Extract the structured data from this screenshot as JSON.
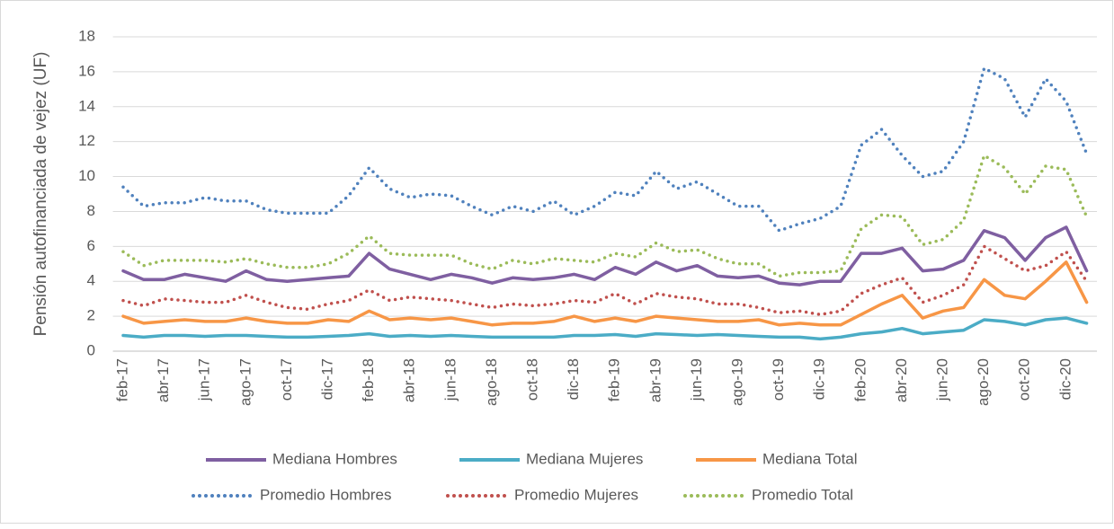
{
  "chart_data": {
    "type": "line",
    "y_label": "Pensión autofinanciada de vejez (UF)",
    "categories": [
      "feb-17",
      null,
      "abr-17",
      null,
      "jun-17",
      null,
      "ago-17",
      null,
      "oct-17",
      null,
      "dic-17",
      null,
      "feb-18",
      null,
      "abr-18",
      null,
      "jun-18",
      null,
      "ago-18",
      null,
      "oct-18",
      null,
      "dic-18",
      null,
      "feb-19",
      null,
      "abr-19",
      null,
      "jun-19",
      null,
      "ago-19",
      null,
      "oct-19",
      null,
      "dic-19",
      null,
      "feb-20",
      null,
      "abr-20",
      null,
      "jun-20",
      null,
      "ago-20",
      null,
      "oct-20",
      null,
      "dic-20",
      null
    ],
    "ylim": [
      0,
      18
    ],
    "yticks": [
      0,
      2,
      4,
      6,
      8,
      10,
      12,
      14,
      16,
      18
    ],
    "grid": true,
    "series": [
      {
        "name": "Mediana Hombres",
        "color": "#7f5fa1",
        "style": "solid",
        "values": [
          4.6,
          4.1,
          4.1,
          4.4,
          4.2,
          4.0,
          4.6,
          4.1,
          4.0,
          4.1,
          4.2,
          4.3,
          5.6,
          4.7,
          4.4,
          4.1,
          4.4,
          4.2,
          3.9,
          4.2,
          4.1,
          4.2,
          4.4,
          4.1,
          4.8,
          4.4,
          5.1,
          4.6,
          4.9,
          4.3,
          4.2,
          4.3,
          3.9,
          3.8,
          4.0,
          4.0,
          5.6,
          5.6,
          5.9,
          4.6,
          4.7,
          5.2,
          6.9,
          6.5,
          5.2,
          6.5,
          7.1,
          4.6
        ]
      },
      {
        "name": "Mediana Mujeres",
        "color": "#4bacc6",
        "style": "solid",
        "values": [
          0.9,
          0.8,
          0.9,
          0.9,
          0.85,
          0.9,
          0.9,
          0.85,
          0.8,
          0.8,
          0.85,
          0.9,
          1.0,
          0.85,
          0.9,
          0.85,
          0.9,
          0.85,
          0.8,
          0.8,
          0.8,
          0.8,
          0.9,
          0.9,
          0.95,
          0.85,
          1.0,
          0.95,
          0.9,
          0.95,
          0.9,
          0.85,
          0.8,
          0.8,
          0.7,
          0.8,
          1.0,
          1.1,
          1.3,
          1.0,
          1.1,
          1.2,
          1.8,
          1.7,
          1.5,
          1.8,
          1.9,
          1.6
        ]
      },
      {
        "name": "Mediana Total",
        "color": "#f79646",
        "style": "solid",
        "values": [
          2.0,
          1.6,
          1.7,
          1.8,
          1.7,
          1.7,
          1.9,
          1.7,
          1.6,
          1.6,
          1.8,
          1.7,
          2.3,
          1.8,
          1.9,
          1.8,
          1.9,
          1.7,
          1.5,
          1.6,
          1.6,
          1.7,
          2.0,
          1.7,
          1.9,
          1.7,
          2.0,
          1.9,
          1.8,
          1.7,
          1.7,
          1.8,
          1.5,
          1.6,
          1.5,
          1.5,
          2.1,
          2.7,
          3.2,
          1.9,
          2.3,
          2.5,
          4.1,
          3.2,
          3.0,
          4.0,
          5.1,
          2.8
        ]
      },
      {
        "name": "Promedio Hombres",
        "color": "#4f81bd",
        "style": "dotted",
        "values": [
          9.4,
          8.3,
          8.5,
          8.5,
          8.8,
          8.6,
          8.6,
          8.1,
          7.9,
          7.9,
          7.9,
          8.9,
          10.5,
          9.3,
          8.8,
          9.0,
          8.9,
          8.3,
          7.8,
          8.3,
          8.0,
          8.6,
          7.8,
          8.3,
          9.1,
          8.9,
          10.3,
          9.3,
          9.7,
          9.0,
          8.3,
          8.3,
          6.9,
          7.3,
          7.6,
          8.3,
          11.8,
          12.7,
          11.2,
          10.0,
          10.3,
          12.0,
          16.2,
          15.6,
          13.4,
          15.6,
          14.3,
          11.3
        ]
      },
      {
        "name": "Promedio Mujeres",
        "color": "#c0504d",
        "style": "dotted",
        "values": [
          2.9,
          2.6,
          3.0,
          2.9,
          2.8,
          2.8,
          3.2,
          2.8,
          2.5,
          2.4,
          2.7,
          2.9,
          3.5,
          2.9,
          3.1,
          3.0,
          2.9,
          2.7,
          2.5,
          2.7,
          2.6,
          2.7,
          2.9,
          2.8,
          3.3,
          2.7,
          3.3,
          3.1,
          3.0,
          2.7,
          2.7,
          2.5,
          2.2,
          2.3,
          2.1,
          2.3,
          3.3,
          3.8,
          4.2,
          2.8,
          3.2,
          3.8,
          6.0,
          5.3,
          4.6,
          4.9,
          5.7,
          4.0
        ]
      },
      {
        "name": "Promedio Total",
        "color": "#9bbb59",
        "style": "dotted",
        "values": [
          5.7,
          4.9,
          5.2,
          5.2,
          5.2,
          5.1,
          5.3,
          5.0,
          4.8,
          4.8,
          5.0,
          5.6,
          6.6,
          5.6,
          5.5,
          5.5,
          5.5,
          5.0,
          4.7,
          5.2,
          5.0,
          5.3,
          5.2,
          5.1,
          5.6,
          5.4,
          6.2,
          5.7,
          5.8,
          5.3,
          5.0,
          5.0,
          4.3,
          4.5,
          4.5,
          4.6,
          7.0,
          7.8,
          7.7,
          6.1,
          6.4,
          7.5,
          11.2,
          10.5,
          9.0,
          10.6,
          10.4,
          7.7
        ]
      }
    ]
  }
}
